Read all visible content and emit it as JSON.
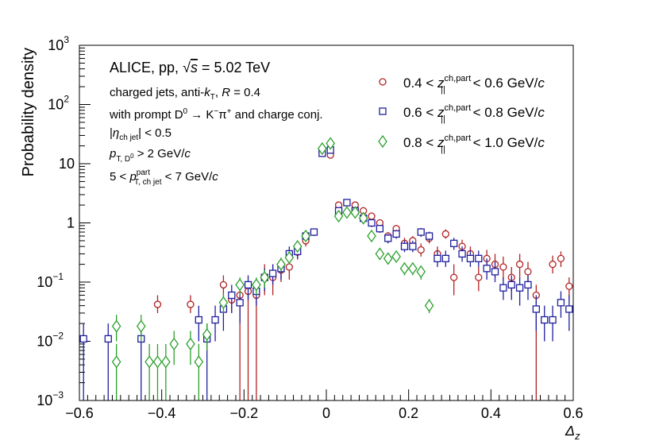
{
  "chart_data": {
    "type": "scatter",
    "yscale": "log",
    "xlim": [
      -0.6,
      0.6
    ],
    "ylim": [
      0.001,
      1000
    ],
    "xlabel": "Δz",
    "ylabel": "Probability density",
    "x_ticks": [
      {
        "v": -0.6,
        "label": "−0.6"
      },
      {
        "v": -0.4,
        "label": "−0.4"
      },
      {
        "v": -0.2,
        "label": "−0.2"
      },
      {
        "v": 0.0,
        "label": "0"
      },
      {
        "v": 0.2,
        "label": "0.2"
      },
      {
        "v": 0.4,
        "label": "0.4"
      },
      {
        "v": 0.6,
        "label": "0.6"
      }
    ],
    "y_ticks": [
      {
        "v": 0.001,
        "label": "10",
        "exp": "−3"
      },
      {
        "v": 0.01,
        "label": "10",
        "exp": "−2"
      },
      {
        "v": 0.1,
        "label": "10",
        "exp": "−1"
      },
      {
        "v": 1,
        "label": "1",
        "exp": ""
      },
      {
        "v": 10,
        "label": "10",
        "exp": ""
      },
      {
        "v": 100,
        "label": "10",
        "exp": "2"
      },
      {
        "v": 1000,
        "label": "10",
        "exp": "3"
      }
    ],
    "annotations": {
      "line1": "ALICE, pp, √s = 5.02 TeV",
      "line2": "charged jets, anti-kT, R = 0.4",
      "line3": "with prompt D0 → K−π+ and charge conj.",
      "line4": "|ηch jet| < 0.5",
      "line5": "pT, D0 > 2 GeV/c",
      "line6": "5 < pT, ch jet part < 7 GeV/c"
    },
    "series": [
      {
        "name": "0.4 < z||ch,part < 0.6 GeV/c",
        "legend_range": [
          "0.4",
          "0.6"
        ],
        "color": "#b22222",
        "marker": "circle",
        "points": [
          {
            "x": -0.41,
            "y": 0.042,
            "lo": 0.03,
            "hi": 0.06
          },
          {
            "x": -0.33,
            "y": 0.042,
            "lo": 0.03,
            "hi": 0.06
          },
          {
            "x": -0.25,
            "y": 0.09,
            "lo": 0.06,
            "hi": 0.13
          },
          {
            "x": -0.23,
            "y": 0.05,
            "lo": 0.03,
            "hi": 0.07
          },
          {
            "x": -0.21,
            "y": 0.06,
            "lo": 0.0,
            "hi": 0.09
          },
          {
            "x": -0.19,
            "y": 0.07,
            "lo": 0.0,
            "hi": 0.1
          },
          {
            "x": -0.17,
            "y": 0.06,
            "lo": 0.0,
            "hi": 0.09
          },
          {
            "x": -0.15,
            "y": 0.12,
            "lo": 0.06,
            "hi": 0.2
          },
          {
            "x": -0.13,
            "y": 0.12,
            "lo": 0.06,
            "hi": 0.2
          },
          {
            "x": -0.11,
            "y": 0.16,
            "lo": 0.1,
            "hi": 0.24
          },
          {
            "x": -0.09,
            "y": 0.18,
            "lo": 0.11,
            "hi": 0.26
          },
          {
            "x": -0.07,
            "y": 0.32,
            "lo": 0.24,
            "hi": 0.42
          },
          {
            "x": -0.05,
            "y": 0.5,
            "lo": 0.4,
            "hi": 0.6
          },
          {
            "x": -0.03,
            "y": 0.7,
            "lo": 0.6,
            "hi": 0.8
          },
          {
            "x": -0.01,
            "y": 16,
            "lo": 15,
            "hi": 17
          },
          {
            "x": 0.01,
            "y": 14,
            "lo": 13,
            "hi": 15
          },
          {
            "x": 0.03,
            "y": 2.0,
            "lo": 1.8,
            "hi": 2.2
          },
          {
            "x": 0.05,
            "y": 2.2,
            "lo": 2.0,
            "hi": 2.4
          },
          {
            "x": 0.07,
            "y": 2.0,
            "lo": 1.8,
            "hi": 2.2
          },
          {
            "x": 0.09,
            "y": 1.6,
            "lo": 1.4,
            "hi": 1.8
          },
          {
            "x": 0.11,
            "y": 1.3,
            "lo": 1.1,
            "hi": 1.5
          },
          {
            "x": 0.13,
            "y": 1.0,
            "lo": 0.85,
            "hi": 1.15
          },
          {
            "x": 0.15,
            "y": 0.6,
            "lo": 0.5,
            "hi": 0.7
          },
          {
            "x": 0.17,
            "y": 0.8,
            "lo": 0.68,
            "hi": 0.92
          },
          {
            "x": 0.19,
            "y": 0.45,
            "lo": 0.36,
            "hi": 0.56
          },
          {
            "x": 0.21,
            "y": 0.5,
            "lo": 0.4,
            "hi": 0.6
          },
          {
            "x": 0.23,
            "y": 0.35,
            "lo": 0.27,
            "hi": 0.45
          },
          {
            "x": 0.25,
            "y": 0.55,
            "lo": 0.45,
            "hi": 0.65
          },
          {
            "x": 0.27,
            "y": 0.3,
            "lo": 0.22,
            "hi": 0.4
          },
          {
            "x": 0.29,
            "y": 0.65,
            "lo": 0.54,
            "hi": 0.78
          },
          {
            "x": 0.31,
            "y": 0.12,
            "lo": 0.06,
            "hi": 0.2
          },
          {
            "x": 0.33,
            "y": 0.4,
            "lo": 0.3,
            "hi": 0.52
          },
          {
            "x": 0.35,
            "y": 0.3,
            "lo": 0.22,
            "hi": 0.4
          },
          {
            "x": 0.37,
            "y": 0.12,
            "lo": 0.07,
            "hi": 0.18
          },
          {
            "x": 0.39,
            "y": 0.25,
            "lo": 0.17,
            "hi": 0.35
          },
          {
            "x": 0.41,
            "y": 0.2,
            "lo": 0.12,
            "hi": 0.3
          },
          {
            "x": 0.43,
            "y": 0.18,
            "lo": 0.11,
            "hi": 0.27
          },
          {
            "x": 0.45,
            "y": 0.12,
            "lo": 0.07,
            "hi": 0.18
          },
          {
            "x": 0.47,
            "y": 0.2,
            "lo": 0.12,
            "hi": 0.3
          },
          {
            "x": 0.49,
            "y": 0.15,
            "lo": 0.09,
            "hi": 0.22
          },
          {
            "x": 0.51,
            "y": 0.06,
            "lo": 0.001,
            "hi": 0.09
          },
          {
            "x": 0.55,
            "y": 0.2,
            "lo": 0.14,
            "hi": 0.28
          },
          {
            "x": 0.57,
            "y": 0.25,
            "lo": 0.18,
            "hi": 0.33
          },
          {
            "x": 0.59,
            "y": 0.085,
            "lo": 0.05,
            "hi": 0.12
          }
        ]
      },
      {
        "name": "0.6 < z||ch,part < 0.8 GeV/c",
        "legend_range": [
          "0.6",
          "0.8"
        ],
        "color": "#1f1f9e",
        "marker": "square",
        "points": [
          {
            "x": -0.59,
            "y": 0.011,
            "lo": 0.001,
            "hi": 0.02
          },
          {
            "x": -0.53,
            "y": 0.011,
            "lo": 0.001,
            "hi": 0.02
          },
          {
            "x": -0.45,
            "y": 0.011,
            "lo": 0.001,
            "hi": 0.02
          },
          {
            "x": -0.31,
            "y": 0.023,
            "lo": 0.01,
            "hi": 0.04
          },
          {
            "x": -0.29,
            "y": 0.011,
            "lo": 0.001,
            "hi": 0.02
          },
          {
            "x": -0.27,
            "y": 0.023,
            "lo": 0.01,
            "hi": 0.04
          },
          {
            "x": -0.25,
            "y": 0.035,
            "lo": 0.015,
            "hi": 0.06
          },
          {
            "x": -0.23,
            "y": 0.06,
            "lo": 0.03,
            "hi": 0.09
          },
          {
            "x": -0.21,
            "y": 0.045,
            "lo": 0.02,
            "hi": 0.07
          },
          {
            "x": -0.19,
            "y": 0.09,
            "lo": 0.05,
            "hi": 0.13
          },
          {
            "x": -0.17,
            "y": 0.07,
            "lo": 0.04,
            "hi": 0.1
          },
          {
            "x": -0.15,
            "y": 0.12,
            "lo": 0.07,
            "hi": 0.17
          },
          {
            "x": -0.13,
            "y": 0.14,
            "lo": 0.09,
            "hi": 0.2
          },
          {
            "x": -0.11,
            "y": 0.17,
            "lo": 0.11,
            "hi": 0.24
          },
          {
            "x": -0.09,
            "y": 0.3,
            "lo": 0.22,
            "hi": 0.4
          },
          {
            "x": -0.07,
            "y": 0.33,
            "lo": 0.25,
            "hi": 0.42
          },
          {
            "x": -0.05,
            "y": 0.6,
            "lo": 0.5,
            "hi": 0.7
          },
          {
            "x": -0.03,
            "y": 0.7,
            "lo": 0.6,
            "hi": 0.8
          },
          {
            "x": -0.01,
            "y": 15,
            "lo": 14,
            "hi": 16
          },
          {
            "x": 0.01,
            "y": 17,
            "lo": 16,
            "hi": 18
          },
          {
            "x": 0.03,
            "y": 1.6,
            "lo": 1.45,
            "hi": 1.75
          },
          {
            "x": 0.05,
            "y": 2.2,
            "lo": 2.0,
            "hi": 2.4
          },
          {
            "x": 0.07,
            "y": 1.6,
            "lo": 1.45,
            "hi": 1.75
          },
          {
            "x": 0.09,
            "y": 1.2,
            "lo": 1.05,
            "hi": 1.35
          },
          {
            "x": 0.11,
            "y": 1.0,
            "lo": 0.85,
            "hi": 1.15
          },
          {
            "x": 0.13,
            "y": 0.8,
            "lo": 0.68,
            "hi": 0.92
          },
          {
            "x": 0.15,
            "y": 0.55,
            "lo": 0.45,
            "hi": 0.65
          },
          {
            "x": 0.17,
            "y": 0.65,
            "lo": 0.54,
            "hi": 0.76
          },
          {
            "x": 0.19,
            "y": 0.4,
            "lo": 0.32,
            "hi": 0.5
          },
          {
            "x": 0.21,
            "y": 0.4,
            "lo": 0.32,
            "hi": 0.5
          },
          {
            "x": 0.23,
            "y": 0.7,
            "lo": 0.58,
            "hi": 0.82
          },
          {
            "x": 0.25,
            "y": 0.6,
            "lo": 0.49,
            "hi": 0.71
          },
          {
            "x": 0.27,
            "y": 0.25,
            "lo": 0.18,
            "hi": 0.34
          },
          {
            "x": 0.29,
            "y": 0.25,
            "lo": 0.18,
            "hi": 0.34
          },
          {
            "x": 0.31,
            "y": 0.45,
            "lo": 0.35,
            "hi": 0.56
          },
          {
            "x": 0.33,
            "y": 0.3,
            "lo": 0.22,
            "hi": 0.4
          },
          {
            "x": 0.35,
            "y": 0.25,
            "lo": 0.18,
            "hi": 0.34
          },
          {
            "x": 0.37,
            "y": 0.25,
            "lo": 0.18,
            "hi": 0.34
          },
          {
            "x": 0.39,
            "y": 0.17,
            "lo": 0.11,
            "hi": 0.25
          },
          {
            "x": 0.41,
            "y": 0.15,
            "lo": 0.1,
            "hi": 0.22
          },
          {
            "x": 0.43,
            "y": 0.08,
            "lo": 0.05,
            "hi": 0.12
          },
          {
            "x": 0.45,
            "y": 0.09,
            "lo": 0.05,
            "hi": 0.13
          },
          {
            "x": 0.47,
            "y": 0.08,
            "lo": 0.04,
            "hi": 0.12
          },
          {
            "x": 0.49,
            "y": 0.09,
            "lo": 0.05,
            "hi": 0.13
          },
          {
            "x": 0.51,
            "y": 0.035,
            "lo": 0.015,
            "hi": 0.06
          },
          {
            "x": 0.53,
            "y": 0.023,
            "lo": 0.01,
            "hi": 0.04
          },
          {
            "x": 0.55,
            "y": 0.023,
            "lo": 0.01,
            "hi": 0.04
          },
          {
            "x": 0.57,
            "y": 0.045,
            "lo": 0.025,
            "hi": 0.07
          },
          {
            "x": 0.59,
            "y": 0.035,
            "lo": 0.015,
            "hi": 0.06
          }
        ]
      },
      {
        "name": "0.8 < z||ch,part < 1.0 GeV/c",
        "legend_range": [
          "0.8",
          "1.0"
        ],
        "color": "#2ca02c",
        "marker": "diamond",
        "points": [
          {
            "x": -0.51,
            "y": 0.018,
            "lo": 0.01,
            "hi": 0.028
          },
          {
            "x": -0.51,
            "y": 0.0045,
            "lo": 0.001,
            "hi": 0.009
          },
          {
            "x": -0.45,
            "y": 0.018,
            "lo": 0.01,
            "hi": 0.028
          },
          {
            "x": -0.43,
            "y": 0.0045,
            "lo": 0.001,
            "hi": 0.009
          },
          {
            "x": -0.41,
            "y": 0.0045,
            "lo": 0.001,
            "hi": 0.009
          },
          {
            "x": -0.39,
            "y": 0.0045,
            "lo": 0.001,
            "hi": 0.009
          },
          {
            "x": -0.37,
            "y": 0.009,
            "lo": 0.004,
            "hi": 0.015
          },
          {
            "x": -0.33,
            "y": 0.009,
            "lo": 0.004,
            "hi": 0.015
          },
          {
            "x": -0.31,
            "y": 0.0045,
            "lo": 0.001,
            "hi": 0.009
          },
          {
            "x": -0.29,
            "y": 0.013,
            "lo": 0.007,
            "hi": 0.02
          },
          {
            "x": -0.25,
            "y": 0.045,
            "lo": 0.03,
            "hi": 0.065
          },
          {
            "x": -0.21,
            "y": 0.09,
            "lo": 0.06,
            "hi": 0.12
          },
          {
            "x": -0.17,
            "y": 0.09,
            "lo": 0.06,
            "hi": 0.12
          },
          {
            "x": -0.15,
            "y": 0.12,
            "lo": 0.08,
            "hi": 0.16
          },
          {
            "x": -0.11,
            "y": 0.2,
            "lo": 0.15,
            "hi": 0.26
          },
          {
            "x": -0.09,
            "y": 0.26,
            "lo": 0.2,
            "hi": 0.33
          },
          {
            "x": -0.07,
            "y": 0.4,
            "lo": 0.33,
            "hi": 0.48
          },
          {
            "x": -0.05,
            "y": 0.6,
            "lo": 0.52,
            "hi": 0.68
          },
          {
            "x": -0.01,
            "y": 18,
            "lo": 17,
            "hi": 19
          },
          {
            "x": 0.01,
            "y": 22,
            "lo": 21,
            "hi": 23
          },
          {
            "x": 0.03,
            "y": 1.3,
            "lo": 1.2,
            "hi": 1.4
          },
          {
            "x": 0.05,
            "y": 1.5,
            "lo": 1.4,
            "hi": 1.6
          },
          {
            "x": 0.07,
            "y": 1.5,
            "lo": 1.4,
            "hi": 1.6
          },
          {
            "x": 0.09,
            "y": 1.2,
            "lo": 1.1,
            "hi": 1.3
          },
          {
            "x": 0.11,
            "y": 0.6,
            "lo": 0.52,
            "hi": 0.68
          },
          {
            "x": 0.13,
            "y": 0.3,
            "lo": 0.25,
            "hi": 0.36
          },
          {
            "x": 0.15,
            "y": 0.25,
            "lo": 0.2,
            "hi": 0.3
          },
          {
            "x": 0.17,
            "y": 0.27,
            "lo": 0.22,
            "hi": 0.32
          },
          {
            "x": 0.19,
            "y": 0.17,
            "lo": 0.13,
            "hi": 0.21
          },
          {
            "x": 0.21,
            "y": 0.17,
            "lo": 0.13,
            "hi": 0.21
          },
          {
            "x": 0.23,
            "y": 0.15,
            "lo": 0.11,
            "hi": 0.19
          },
          {
            "x": 0.25,
            "y": 0.04,
            "lo": 0.03,
            "hi": 0.052
          }
        ]
      }
    ]
  }
}
